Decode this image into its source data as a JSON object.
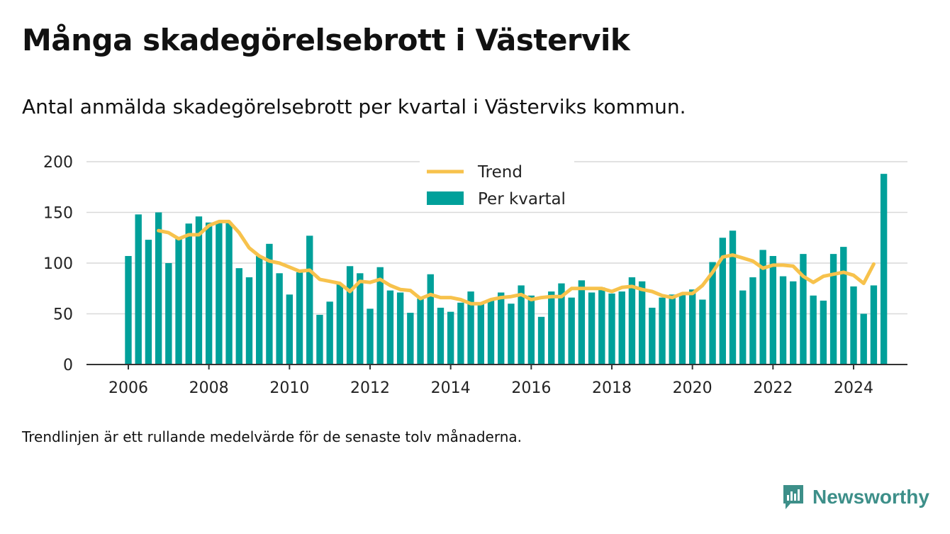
{
  "title": "Många skadegörelsebrott i Västervik",
  "subtitle": "Antal anmälda skadegörelsebrott per kvartal i Västerviks kommun.",
  "footnote": "Trendlinjen är ett rullande medelvärde för de senaste tolv månaderna.",
  "brand": {
    "name": "Newsworthy",
    "color": "#3d8f89"
  },
  "chart_data": {
    "type": "bar",
    "x_start": 2006.0,
    "x_step": 0.25,
    "xlim": [
      2005.0,
      2025.5
    ],
    "ylim": [
      0,
      200
    ],
    "x_ticks": [
      2006,
      2008,
      2010,
      2012,
      2014,
      2016,
      2018,
      2020,
      2022,
      2024
    ],
    "y_ticks": [
      0,
      50,
      100,
      150,
      200
    ],
    "grid": true,
    "legend_position": "top-center",
    "series": [
      {
        "name": "Per kvartal",
        "type": "bar",
        "color": "#00a09a",
        "values": [
          107,
          148,
          123,
          150,
          100,
          124,
          139,
          146,
          140,
          141,
          140,
          95,
          86,
          107,
          119,
          90,
          69,
          91,
          127,
          49,
          62,
          79,
          97,
          90,
          55,
          96,
          73,
          71,
          51,
          65,
          89,
          56,
          52,
          61,
          72,
          61,
          64,
          71,
          60,
          78,
          68,
          47,
          72,
          80,
          66,
          83,
          71,
          76,
          70,
          72,
          86,
          82,
          56,
          66,
          69,
          70,
          74,
          64,
          101,
          125,
          132,
          73,
          86,
          113,
          107,
          87,
          82,
          109,
          68,
          63,
          109,
          116,
          77,
          50,
          78,
          188
        ]
      },
      {
        "name": "Trend",
        "type": "line",
        "color": "#f7c24c",
        "x_start": 2006.75,
        "values": [
          132,
          130,
          124,
          128,
          128,
          137,
          141,
          141,
          130,
          115,
          107,
          102,
          100,
          96,
          92,
          93,
          84,
          82,
          80,
          72,
          82,
          81,
          84,
          78,
          74,
          73,
          65,
          69,
          66,
          66,
          64,
          60,
          60,
          64,
          66,
          67,
          69,
          64,
          66,
          67,
          67,
          75,
          75,
          75,
          75,
          72,
          76,
          77,
          74,
          72,
          68,
          66,
          70,
          70,
          78,
          91,
          106,
          108,
          105,
          102,
          95,
          98,
          98,
          97,
          87,
          81,
          87,
          89,
          91,
          88,
          80,
          99
        ]
      }
    ]
  }
}
